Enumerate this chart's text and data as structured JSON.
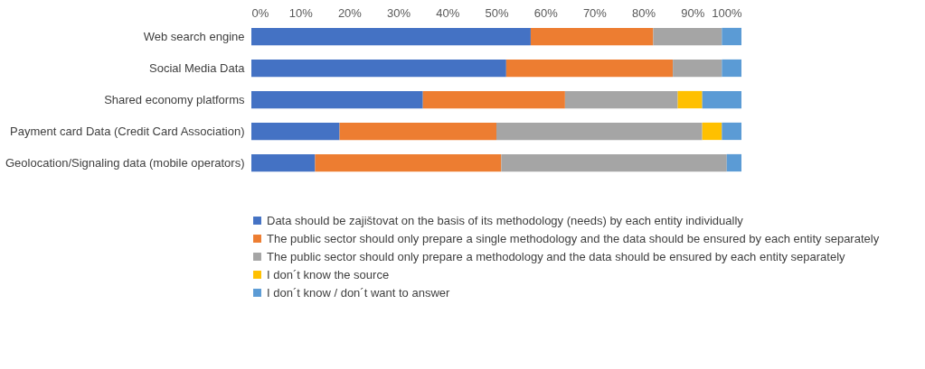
{
  "chart_data": {
    "type": "bar",
    "orientation": "horizontal",
    "stacked": true,
    "legend": "bottom",
    "grid": false,
    "categories": [
      "Web search engine",
      "Social Media Data",
      "Shared economy platforms",
      "Payment card Data (Credit Card Association)",
      "Geolocation/Signaling data (mobile operators)"
    ],
    "xlim": [
      0,
      100
    ],
    "xticks": [
      {
        "value": 0,
        "label": "0%"
      },
      {
        "value": 10,
        "label": "10%"
      },
      {
        "value": 20,
        "label": "20%"
      },
      {
        "value": 30,
        "label": "30%"
      },
      {
        "value": 40,
        "label": "40%"
      },
      {
        "value": 50,
        "label": "50%"
      },
      {
        "value": 60,
        "label": "60%"
      },
      {
        "value": 70,
        "label": "70%"
      },
      {
        "value": 80,
        "label": "80%"
      },
      {
        "value": 90,
        "label": "90%"
      },
      {
        "value": 100,
        "label": "100%"
      }
    ],
    "series": [
      {
        "name": "Data should be zajištovat on the basis of its methodology (needs) by each entity individually",
        "color": "#4472c4",
        "values": [
          57,
          52,
          35,
          18,
          13
        ]
      },
      {
        "name": "The public sector should only prepare a single methodology and the data should be ensured by each entity separately",
        "color": "#ed7d31",
        "values": [
          25,
          34,
          29,
          32,
          38
        ]
      },
      {
        "name": "The public sector should only prepare a methodology and the data should be ensured by each entity separately",
        "color": "#a5a5a5",
        "values": [
          14,
          10,
          23,
          42,
          46
        ]
      },
      {
        "name": "I don´t know the source",
        "color": "#ffc000",
        "values": [
          0,
          0,
          5,
          4,
          0
        ]
      },
      {
        "name": "I don´t know / don´t want to answer",
        "color": "#5b9bd5",
        "values": [
          4,
          4,
          8,
          4,
          3
        ]
      }
    ]
  }
}
